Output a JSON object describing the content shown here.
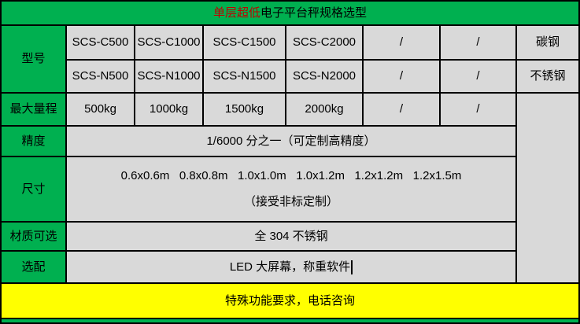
{
  "colors": {
    "green": "#00B050",
    "yellow": "#FFFF00",
    "cell_bg": "#D9D9D9",
    "border": "#000000",
    "title_red": "#C00000",
    "text": "#000000"
  },
  "table": {
    "title": {
      "highlight": "单层超低",
      "rest": "电子平台秤规格选型",
      "full": "单层超低电子平台秤规格选型"
    },
    "rows": {
      "model": {
        "label": "型号",
        "c_cells": [
          "SCS-C500",
          "SCS-C1000",
          "SCS-C1500",
          "SCS-C2000",
          "/",
          "/",
          "碳钢"
        ],
        "n_cells": [
          "SCS-N500",
          "SCS-N1000",
          "SCS-N1500",
          "SCS-N2000",
          "/",
          "/",
          "不锈钢"
        ]
      },
      "capacity": {
        "label": "最大量程",
        "cells": [
          "500kg",
          "1000kg",
          "1500kg",
          "2000kg",
          "/",
          "/"
        ]
      },
      "precision": {
        "label": "精度",
        "value": "1/6000 分之一（可定制高精度）"
      },
      "size": {
        "label": "尺寸",
        "sizes": [
          "0.6x0.6m",
          "0.8x0.8m",
          "1.0x1.0m",
          "1.0x1.2m",
          "1.2x1.2m",
          "1.2x1.5m"
        ],
        "line1": "0.6x0.6m   0.8x0.8m   1.0x1.0m   1.0x1.2m   1.2x1.2m   1.2x1.5m",
        "line2": "（接受非标定制）"
      },
      "material": {
        "label": "材质可选",
        "value": "全 304 不锈钢"
      },
      "optional": {
        "label": "选配",
        "value": "LED 大屏幕，称重软件"
      }
    },
    "footer": "特殊功能要求，电话咨询"
  }
}
